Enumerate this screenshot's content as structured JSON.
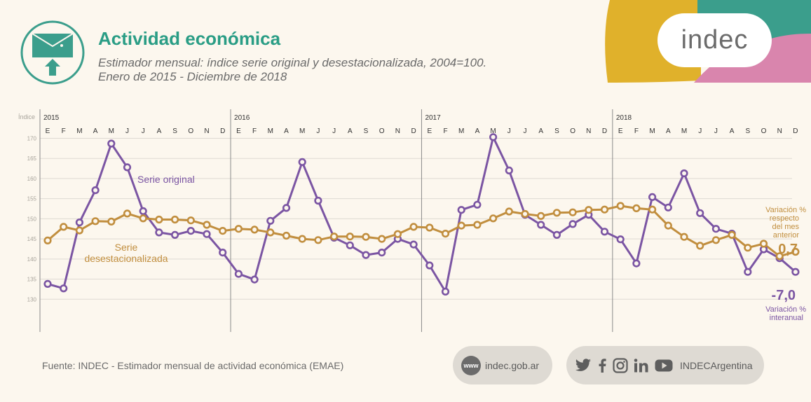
{
  "header": {
    "title": "Actividad económica",
    "subtitle_line1": "Estimador mensual: índice serie original y desestacionalizada, 2004=100.",
    "subtitle_line2": "Enero de 2015 - Diciembre de 2018"
  },
  "logo": {
    "text": "indec"
  },
  "footer": {
    "source": "Fuente: INDEC - Estimador mensual de actividad económica (EMAE)",
    "www_badge": "www",
    "website": "indec.gob.ar",
    "social_handle": "INDECArgentina"
  },
  "colors": {
    "original": "#7b55a3",
    "desestacionalizada": "#c18e3e",
    "teal": "#3b9e8c",
    "yellow": "#e0b12b",
    "pink": "#d985ad",
    "grid": "#dedad3",
    "text_gray": "#6a6a6a"
  },
  "icons": [
    "envelope-up-icon",
    "twitter-icon",
    "facebook-icon",
    "instagram-icon",
    "linkedin-icon",
    "youtube-icon"
  ],
  "chart_data": {
    "type": "line",
    "ylabel": "Índice",
    "yticks": [
      130,
      135,
      140,
      145,
      150,
      155,
      160,
      165,
      170
    ],
    "ylim": [
      125,
      172
    ],
    "grid": true,
    "years": [
      "2015",
      "2016",
      "2017",
      "2018"
    ],
    "month_labels": [
      "E",
      "F",
      "M",
      "A",
      "M",
      "J",
      "J",
      "A",
      "S",
      "O",
      "N",
      "D"
    ],
    "series": [
      {
        "name": "Serie original",
        "values": [
          133.8,
          132.7,
          149.1,
          157.1,
          168.7,
          162.8,
          151.9,
          146.6,
          146.0,
          147.0,
          146.2,
          141.6,
          136.3,
          134.9,
          149.5,
          152.7,
          164.1,
          154.5,
          145.3,
          143.4,
          141.0,
          141.6,
          145.0,
          143.6,
          138.4,
          131.9,
          152.2,
          153.5,
          170.3,
          162.0,
          151.0,
          148.5,
          146.0,
          148.7,
          151.0,
          146.8,
          144.9,
          138.9,
          155.4,
          152.8,
          161.3,
          151.4,
          147.5,
          146.3,
          136.8,
          142.4,
          140.2,
          136.8
        ]
      },
      {
        "name": "Serie desestacionalizada",
        "values": [
          144.6,
          148.0,
          147.1,
          149.4,
          149.3,
          151.3,
          150.1,
          149.8,
          149.8,
          149.6,
          148.5,
          147.0,
          147.5,
          147.3,
          146.6,
          145.8,
          145.0,
          144.7,
          145.6,
          145.6,
          145.5,
          145.0,
          146.2,
          148.0,
          147.8,
          146.3,
          148.3,
          148.5,
          150.1,
          151.8,
          151.2,
          150.7,
          151.5,
          151.6,
          152.2,
          152.3,
          153.2,
          152.6,
          152.3,
          148.3,
          145.5,
          143.3,
          144.7,
          146.0,
          142.8,
          143.8,
          140.7,
          141.8
        ]
      }
    ],
    "annotations": {
      "serie_original_label": "Serie original",
      "desest_label_line1": "Serie",
      "desest_label_line2": "desestacionalizada",
      "var_mensual_line1": "Variación %",
      "var_mensual_line2": "respecto",
      "var_mensual_line3": "del mes",
      "var_mensual_line4": "anterior",
      "var_mensual_value": "0,7",
      "var_interanual_value": "-7,0",
      "var_interanual_line1": "Variación %",
      "var_interanual_line2": "interanual"
    }
  }
}
